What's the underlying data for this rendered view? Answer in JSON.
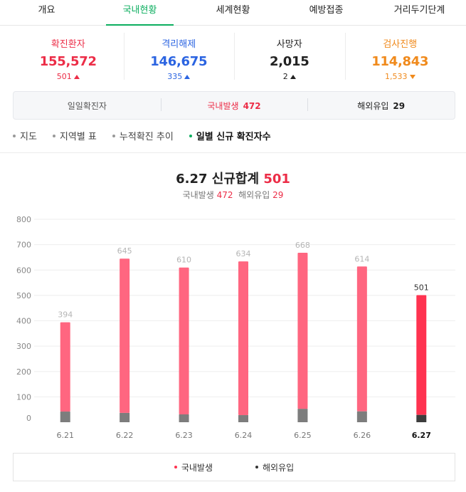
{
  "tabs": [
    {
      "label": "개요"
    },
    {
      "label": "국내현황"
    },
    {
      "label": "세계현황"
    },
    {
      "label": "예방접종"
    },
    {
      "label": "거리두기단계"
    }
  ],
  "stats": [
    {
      "label": "확진환자",
      "value": "155,572",
      "delta": "501",
      "direction": "up",
      "color": "#ec2d47"
    },
    {
      "label": "격리해제",
      "value": "146,675",
      "delta": "335",
      "direction": "up",
      "color": "#2b64e1"
    },
    {
      "label": "사망자",
      "value": "2,015",
      "delta": "2",
      "direction": "up",
      "color": "#222222"
    },
    {
      "label": "검사진행",
      "value": "114,843",
      "delta": "1,533",
      "direction": "down",
      "color": "#f08a1c"
    }
  ],
  "daily": {
    "label": "일일확진자",
    "domestic_label": "국내발생",
    "domestic_value": "472",
    "overseas_label": "해외유입",
    "overseas_value": "29"
  },
  "subnav": [
    {
      "label": "지도"
    },
    {
      "label": "지역별 표"
    },
    {
      "label": "누적확진 추이"
    },
    {
      "label": "일별 신규 확진자수"
    }
  ],
  "summary": {
    "title_prefix": "6.27 신규합계",
    "title_total": "501",
    "domestic_label": "국내발생",
    "domestic_value": "472",
    "overseas_label": "해외유입",
    "overseas_value": "29"
  },
  "chart_data": {
    "type": "bar",
    "categories": [
      "6.21",
      "6.22",
      "6.23",
      "6.24",
      "6.25",
      "6.26",
      "6.27"
    ],
    "totals": [
      394,
      645,
      610,
      634,
      668,
      614,
      501
    ],
    "series": [
      {
        "name": "국내발생",
        "values": [
          352,
          608,
          579,
          606,
          615,
          571,
          472
        ],
        "color": "#ff6680",
        "highlight_color": "#ff3350"
      },
      {
        "name": "해외유입",
        "values": [
          42,
          37,
          31,
          28,
          53,
          43,
          29
        ],
        "color": "#7d7d7d",
        "highlight_color": "#3d3d3d"
      }
    ],
    "yticks": [
      0,
      100,
      200,
      300,
      400,
      500,
      600,
      700,
      800
    ],
    "ylim": [
      0,
      800
    ],
    "highlight_category": "6.27",
    "grid": true,
    "legend_position": "bottom"
  },
  "legend": [
    {
      "label": "국내발생",
      "color": "#ff3350"
    },
    {
      "label": "해외유입",
      "color": "#333333"
    }
  ]
}
